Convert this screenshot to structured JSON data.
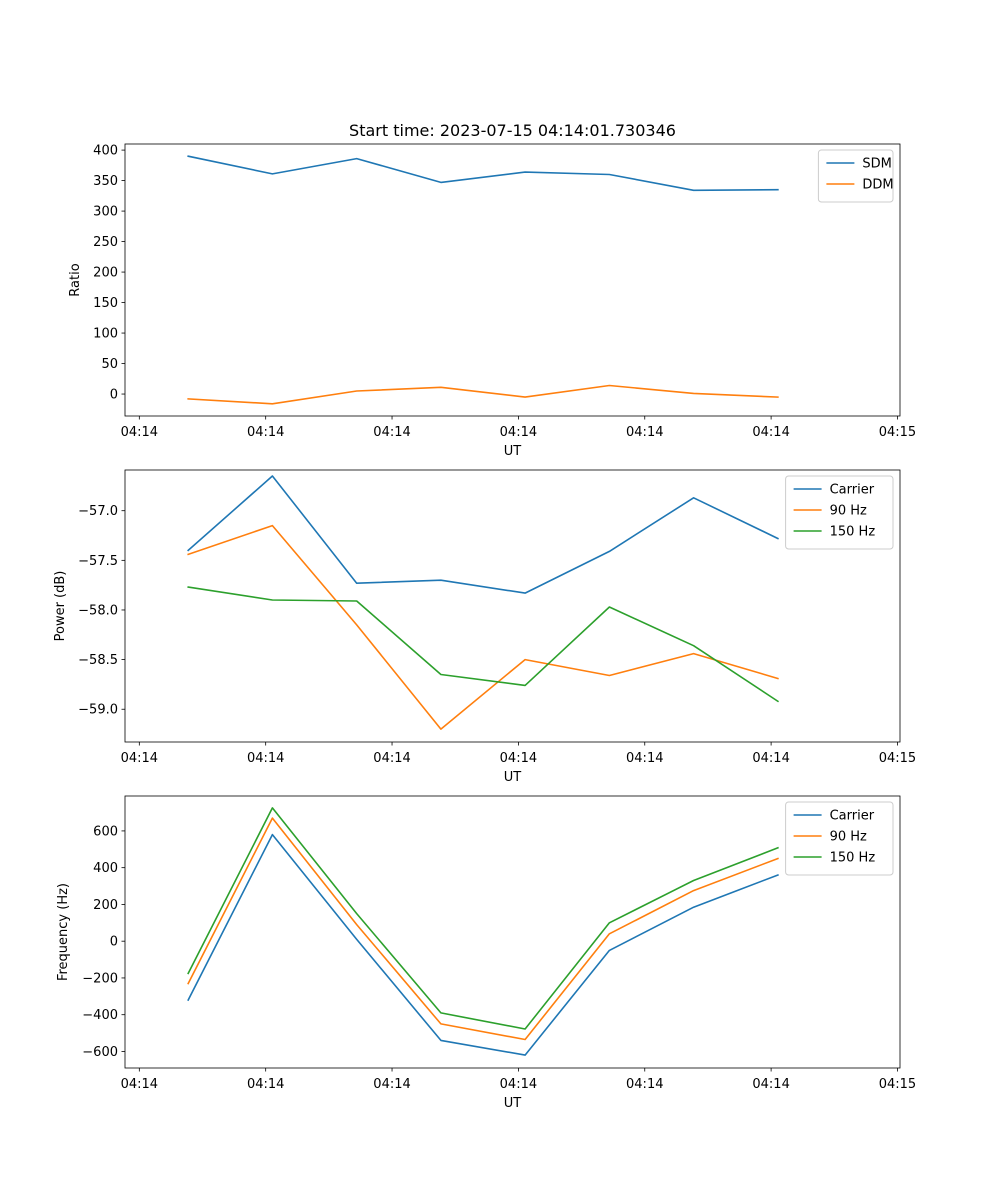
{
  "figure": {
    "title": "Start time: 2023-07-15 04:14:01.730346"
  },
  "chart_data": [
    {
      "type": "line",
      "title": "Start time: 2023-07-15 04:14:01.730346",
      "xlabel": "UT",
      "ylabel": "Ratio",
      "x": [
        1,
        2,
        3,
        4,
        5,
        6,
        7,
        8
      ],
      "xlim": [
        0.25,
        9.45
      ],
      "xticks": [
        0.42,
        1.92,
        3.42,
        4.92,
        6.42,
        7.92,
        9.42
      ],
      "xtick_labels": [
        "04:14",
        "04:14",
        "04:14",
        "04:14",
        "04:14",
        "04:14",
        "04:15"
      ],
      "ylim": [
        -36,
        410
      ],
      "yticks": [
        0,
        50,
        100,
        150,
        200,
        250,
        300,
        350,
        400
      ],
      "ytick_labels": [
        "0",
        "50",
        "100",
        "150",
        "200",
        "250",
        "300",
        "350",
        "400"
      ],
      "legend": "top-right",
      "series": [
        {
          "name": "SDM",
          "color": "#1f77b4",
          "values": [
            390,
            361,
            386,
            347,
            364,
            360,
            334,
            335
          ]
        },
        {
          "name": "DDM",
          "color": "#ff7f0e",
          "values": [
            -8,
            -16,
            5,
            11,
            -5,
            14,
            1,
            -5
          ]
        }
      ]
    },
    {
      "type": "line",
      "title": "",
      "xlabel": "UT",
      "ylabel": "Power (dB)",
      "x": [
        1,
        2,
        3,
        4,
        5,
        6,
        7,
        8
      ],
      "xlim": [
        0.25,
        9.45
      ],
      "xticks": [
        0.42,
        1.92,
        3.42,
        4.92,
        6.42,
        7.92,
        9.42
      ],
      "xtick_labels": [
        "04:14",
        "04:14",
        "04:14",
        "04:14",
        "04:14",
        "04:14",
        "04:15"
      ],
      "ylim": [
        -59.33,
        -56.59
      ],
      "yticks": [
        -59.0,
        -58.5,
        -58.0,
        -57.5,
        -57.0
      ],
      "ytick_labels": [
        "−59.0",
        "−58.5",
        "−58.0",
        "−57.5",
        "−57.0"
      ],
      "legend": "top-right",
      "series": [
        {
          "name": "Carrier",
          "color": "#1f77b4",
          "values": [
            -57.4,
            -56.65,
            -57.73,
            -57.7,
            -57.83,
            -57.41,
            -56.87,
            -57.28
          ]
        },
        {
          "name": "90 Hz",
          "color": "#ff7f0e",
          "values": [
            -57.44,
            -57.15,
            -58.15,
            -59.2,
            -58.5,
            -58.66,
            -58.44,
            -58.69
          ]
        },
        {
          "name": "150 Hz",
          "color": "#2ca02c",
          "values": [
            -57.77,
            -57.9,
            -57.91,
            -58.65,
            -58.76,
            -57.97,
            -58.36,
            -58.92
          ]
        }
      ]
    },
    {
      "type": "line",
      "title": "",
      "xlabel": "UT",
      "ylabel": "Frequency (Hz)",
      "x": [
        1,
        2,
        3,
        4,
        5,
        6,
        7,
        8
      ],
      "xlim": [
        0.25,
        9.45
      ],
      "xticks": [
        0.42,
        1.92,
        3.42,
        4.92,
        6.42,
        7.92,
        9.42
      ],
      "xtick_labels": [
        "04:14",
        "04:14",
        "04:14",
        "04:14",
        "04:14",
        "04:14",
        "04:15"
      ],
      "ylim": [
        -690,
        790
      ],
      "yticks": [
        -600,
        -400,
        -200,
        0,
        200,
        400,
        600
      ],
      "ytick_labels": [
        "−600",
        "−400",
        "−200",
        "0",
        "200",
        "400",
        "600"
      ],
      "legend": "top-right",
      "series": [
        {
          "name": "Carrier",
          "color": "#1f77b4",
          "values": [
            -320,
            580,
            10,
            -540,
            -620,
            -50,
            185,
            360
          ]
        },
        {
          "name": "90 Hz",
          "color": "#ff7f0e",
          "values": [
            -230,
            670,
            90,
            -450,
            -535,
            40,
            275,
            450
          ]
        },
        {
          "name": "150 Hz",
          "color": "#2ca02c",
          "values": [
            -175,
            725,
            150,
            -390,
            -478,
            100,
            330,
            508
          ]
        }
      ]
    }
  ]
}
